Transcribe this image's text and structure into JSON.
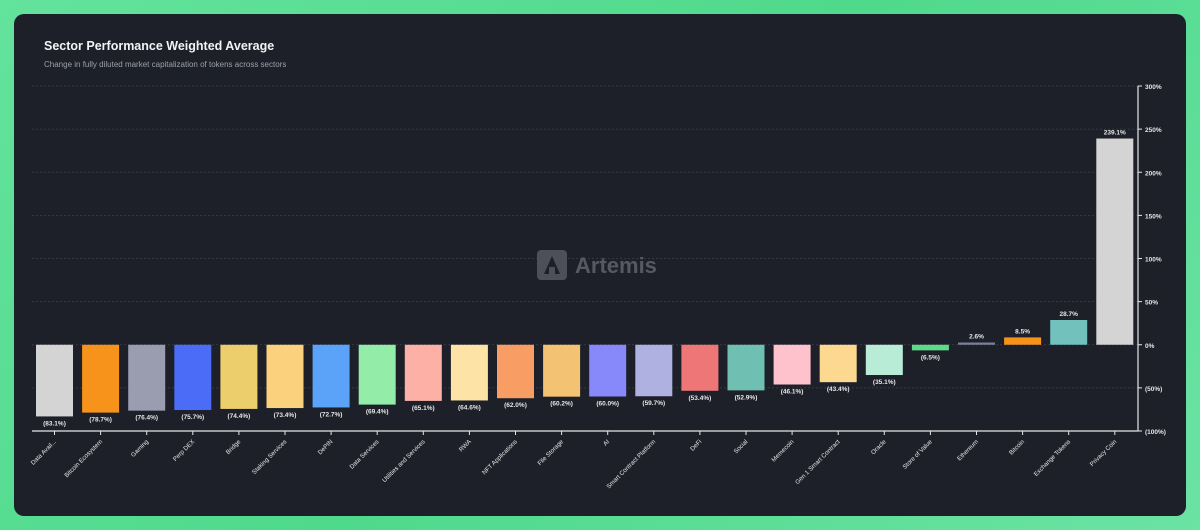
{
  "header": {
    "title": "Sector Performance Weighted Average",
    "subtitle": "Change in fully diluted market capitalization of tokens across sectors"
  },
  "watermark": {
    "text": "Artemis"
  },
  "chart_data": {
    "type": "bar",
    "title": "Sector Performance Weighted Average",
    "subtitle": "Change in fully diluted market capitalization of tokens across sectors",
    "xlabel": "",
    "ylabel": "",
    "ylim": [
      -100,
      300
    ],
    "y_ticks": [
      300,
      250,
      200,
      150,
      100,
      50,
      0,
      -50,
      -100
    ],
    "y_tick_labels": [
      "300%",
      "250%",
      "200%",
      "150%",
      "100%",
      "50%",
      "0%",
      "(50%)",
      "(100%)"
    ],
    "y_axis_position": "right",
    "grid": true,
    "categories": [
      "Data Avail...",
      "Bitcoin Ecosystem",
      "Gaming",
      "Perp DEX",
      "Bridge",
      "Staking Services",
      "DePIN",
      "Data Services",
      "Utilities and Services",
      "RWA",
      "NFT Applications",
      "File Storage",
      "AI",
      "Smart Contract Platform",
      "DeFi",
      "Social",
      "Memecoin",
      "Gen 1 Smart Contract",
      "Oracle",
      "Store of Value",
      "Ethereum",
      "Bitcoin",
      "Exchange Tokens",
      "Privacy Coin"
    ],
    "values": [
      -83.1,
      -78.7,
      -76.4,
      -75.7,
      -74.4,
      -73.4,
      -72.7,
      -69.4,
      -65.1,
      -64.6,
      -62.0,
      -60.2,
      -60.0,
      -59.7,
      -53.4,
      -52.9,
      -46.1,
      -43.4,
      -35.1,
      -6.5,
      2.6,
      8.5,
      28.7,
      239.1
    ],
    "data_labels": [
      "(83.1%)",
      "(78.7%)",
      "(76.4%)",
      "(75.7%)",
      "(74.4%)",
      "(73.4%)",
      "(72.7%)",
      "(69.4%)",
      "(65.1%)",
      "(64.6%)",
      "(62.0%)",
      "(60.2%)",
      "(60.0%)",
      "(59.7%)",
      "(53.4%)",
      "(52.9%)",
      "(46.1%)",
      "(43.4%)",
      "(35.1%)",
      "(6.5%)",
      "2.6%",
      "8.5%",
      "28.7%",
      "239.1%"
    ],
    "colors": [
      "#d4d4d4",
      "#f7931a",
      "#9a9cb0",
      "#4a6cf7",
      "#ecce6c",
      "#fbd17d",
      "#5ba3f8",
      "#93eca8",
      "#fdb1a6",
      "#fde4a6",
      "#f89e64",
      "#f3c272",
      "#8789fb",
      "#afb1e0",
      "#ee7676",
      "#6fc0b3",
      "#fdc2cc",
      "#fcd890",
      "#b8ecd6",
      "#5fd98a",
      "#7a7e9a",
      "#f7931a",
      "#72c1bd",
      "#d4d4d4"
    ]
  }
}
